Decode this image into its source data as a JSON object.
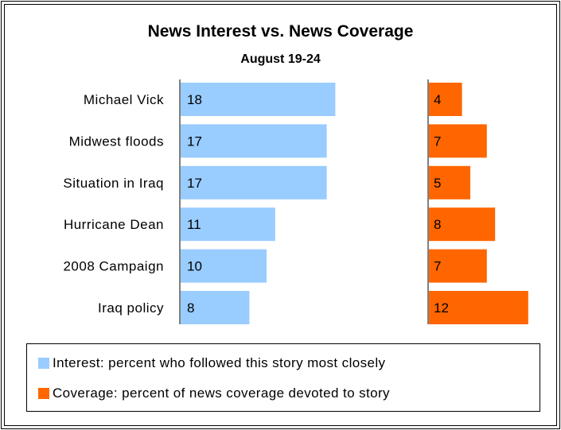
{
  "title": "News Interest vs. News Coverage",
  "subtitle": "August 19-24",
  "colors": {
    "interest": "#99ccff",
    "coverage": "#ff6600"
  },
  "chart_data": {
    "type": "bar",
    "orientation": "horizontal",
    "title": "News Interest vs. News Coverage",
    "subtitle": "August 19-24",
    "categories": [
      "Michael Vick",
      "Midwest floods",
      "Situation in Iraq",
      "Hurricane Dean",
      "2008 Campaign",
      "Iraq policy"
    ],
    "series": [
      {
        "name": "Interest: percent who followed this story most closely",
        "values": [
          18,
          17,
          17,
          11,
          10,
          8
        ],
        "color": "#99ccff"
      },
      {
        "name": "Coverage: percent of news coverage devoted to story",
        "values": [
          4,
          7,
          5,
          8,
          7,
          12
        ],
        "color": "#ff6600"
      }
    ],
    "data_labels": true,
    "grid": false,
    "legend_position": "bottom"
  },
  "legend": {
    "interest_label": "Interest: percent who followed this story most closely",
    "coverage_label": "Coverage: percent of news coverage devoted to story"
  }
}
